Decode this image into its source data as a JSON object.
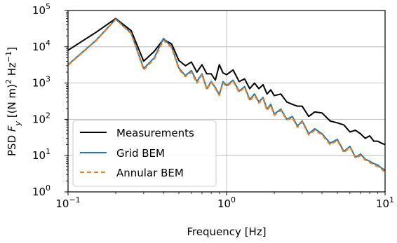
{
  "chart_data": {
    "type": "line",
    "title": "",
    "xlabel": "Frequency [Hz]",
    "ylabel": "PSD F_y [(N m)^2 Hz^-1]",
    "xscale": "log",
    "yscale": "log",
    "xlim": [
      0.1,
      10
    ],
    "ylim": [
      1,
      100000
    ],
    "grid": true,
    "legend_position": "lower-left",
    "x_ticks": [
      {
        "value": 0.1,
        "base": "10",
        "exp": "−1"
      },
      {
        "value": 1,
        "base": "10",
        "exp": "0"
      },
      {
        "value": 10,
        "base": "10",
        "exp": "1"
      }
    ],
    "y_ticks": [
      {
        "value": 1,
        "base": "10",
        "exp": "0"
      },
      {
        "value": 10,
        "base": "10",
        "exp": "1"
      },
      {
        "value": 100,
        "base": "10",
        "exp": "2"
      },
      {
        "value": 1000,
        "base": "10",
        "exp": "3"
      },
      {
        "value": 10000,
        "base": "10",
        "exp": "4"
      },
      {
        "value": 100000,
        "base": "10",
        "exp": "5"
      }
    ],
    "series": [
      {
        "name": "Measurements",
        "color": "#000000",
        "style": "solid",
        "x": [
          0.1,
          0.15,
          0.2,
          0.25,
          0.3,
          0.35,
          0.4,
          0.45,
          0.5,
          0.55,
          0.6,
          0.65,
          0.7,
          0.75,
          0.8,
          0.85,
          0.9,
          0.95,
          1.0,
          1.1,
          1.2,
          1.3,
          1.4,
          1.5,
          1.6,
          1.7,
          1.8,
          1.9,
          2.0,
          2.2,
          2.4,
          2.6,
          2.8,
          3.0,
          3.3,
          3.6,
          4.0,
          4.5,
          5.0,
          5.5,
          6.0,
          6.5,
          7.0,
          7.5,
          8.0,
          8.5,
          9.0,
          9.5,
          10.0
        ],
        "y": [
          8000,
          25000,
          60000,
          28000,
          4000,
          7500,
          16000,
          12000,
          4200,
          3000,
          3800,
          2000,
          3200,
          1800,
          1800,
          1200,
          3200,
          1900,
          1700,
          2300,
          1100,
          1300,
          700,
          1000,
          700,
          900,
          500,
          650,
          450,
          500,
          300,
          260,
          230,
          230,
          120,
          160,
          150,
          90,
          80,
          70,
          45,
          50,
          40,
          30,
          35,
          25,
          25,
          22,
          20
        ]
      },
      {
        "name": "Grid BEM",
        "color": "#1f77b4",
        "style": "solid",
        "x": [
          0.1,
          0.15,
          0.2,
          0.25,
          0.3,
          0.35,
          0.4,
          0.45,
          0.5,
          0.55,
          0.6,
          0.65,
          0.7,
          0.75,
          0.8,
          0.85,
          0.9,
          0.95,
          1.0,
          1.1,
          1.2,
          1.3,
          1.4,
          1.5,
          1.6,
          1.7,
          1.8,
          1.9,
          2.0,
          2.2,
          2.4,
          2.6,
          2.8,
          3.0,
          3.3,
          3.6,
          4.0,
          4.5,
          5.0,
          5.5,
          6.0,
          6.5,
          7.0,
          7.5,
          8.0,
          8.5,
          9.0,
          9.5,
          10.0
        ],
        "y": [
          3200,
          15000,
          58000,
          24000,
          2500,
          5000,
          17000,
          10000,
          2600,
          1600,
          2200,
          1100,
          1800,
          700,
          1100,
          750,
          480,
          1100,
          850,
          1200,
          600,
          800,
          350,
          500,
          300,
          400,
          190,
          260,
          140,
          190,
          100,
          120,
          65,
          90,
          40,
          55,
          40,
          22,
          28,
          13,
          18,
          9,
          11,
          8,
          7,
          6,
          5.5,
          4.5,
          4
        ]
      },
      {
        "name": "Annular BEM",
        "color": "#ff7f0e",
        "style": "dashed",
        "x": [
          0.1,
          0.15,
          0.2,
          0.25,
          0.3,
          0.35,
          0.4,
          0.45,
          0.5,
          0.55,
          0.6,
          0.65,
          0.7,
          0.75,
          0.8,
          0.85,
          0.9,
          0.95,
          1.0,
          1.1,
          1.2,
          1.3,
          1.4,
          1.5,
          1.6,
          1.7,
          1.8,
          1.9,
          2.0,
          2.2,
          2.4,
          2.6,
          2.8,
          3.0,
          3.3,
          3.6,
          4.0,
          4.5,
          5.0,
          5.5,
          6.0,
          6.5,
          7.0,
          7.5,
          8.0,
          8.5,
          9.0,
          9.5,
          10.0
        ],
        "y": [
          3100,
          14500,
          57000,
          23000,
          2300,
          4600,
          15000,
          9500,
          2400,
          1500,
          2000,
          1000,
          1700,
          650,
          1050,
          700,
          450,
          1000,
          800,
          1100,
          560,
          750,
          320,
          460,
          280,
          370,
          175,
          240,
          130,
          175,
          95,
          110,
          60,
          85,
          37,
          50,
          37,
          20,
          26,
          12,
          17,
          8.5,
          10,
          7.5,
          6.5,
          5.5,
          5,
          4.2,
          3.5
        ]
      }
    ]
  }
}
